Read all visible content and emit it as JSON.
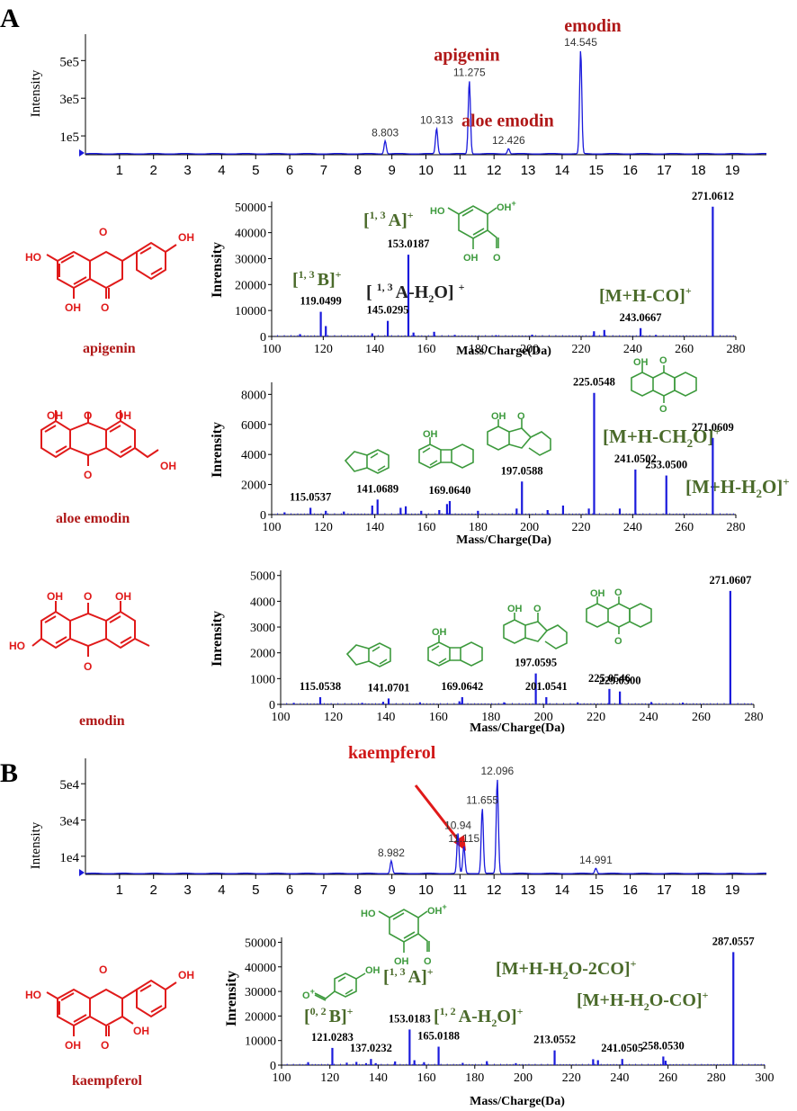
{
  "figure": {
    "panel_a_label": "A",
    "panel_b_label": "B",
    "colors": {
      "trace": "#1a1adc",
      "red": "#e01a1a",
      "green": "#3d9a3d",
      "darkred": "#b01818",
      "olive": "#4a6a2a"
    }
  },
  "chart_data": [
    {
      "id": "chromA",
      "type": "line",
      "title": "",
      "ylabel": "Intensity",
      "xlim": [
        0,
        20
      ],
      "ylim": [
        0,
        640000
      ],
      "x_ticks": [
        1,
        2,
        3,
        4,
        5,
        6,
        7,
        8,
        9,
        10,
        11,
        12,
        13,
        14,
        15,
        16,
        17,
        18,
        19
      ],
      "y_ticks": [
        {
          "value": 100000,
          "label": "1e5"
        },
        {
          "value": 300000,
          "label": "3e5"
        },
        {
          "value": 500000,
          "label": "5e5"
        }
      ],
      "peaks": [
        {
          "x": 8.803,
          "y": 70000,
          "label": "8.803"
        },
        {
          "x": 10.313,
          "y": 135000,
          "label": "10.313"
        },
        {
          "x": 11.275,
          "y": 390000,
          "label": "11.275"
        },
        {
          "x": 12.426,
          "y": 28000,
          "label": "12.426"
        },
        {
          "x": 14.545,
          "y": 550000,
          "label": "14.545"
        }
      ],
      "compounds": [
        {
          "name": "apigenin",
          "x": 11.2,
          "y": 500000
        },
        {
          "name": "aloe emodin",
          "x": 12.4,
          "y": 150000
        },
        {
          "name": "emodin",
          "x": 14.9,
          "y": 655000
        }
      ]
    },
    {
      "id": "msApigenin",
      "type": "bar",
      "xlabel": "Mass/Charge(Da)",
      "ylabel": "Inrensity",
      "xlim": [
        100,
        280
      ],
      "ylim": [
        0,
        52000
      ],
      "x_ticks": [
        100,
        120,
        140,
        160,
        180,
        200,
        220,
        240,
        260,
        280
      ],
      "y_ticks": [
        0,
        10000,
        20000,
        30000,
        40000,
        50000
      ],
      "peaks": [
        {
          "x": 111,
          "y": 900
        },
        {
          "x": 119.0499,
          "y": 9500
        },
        {
          "x": 121,
          "y": 4000
        },
        {
          "x": 139,
          "y": 1200
        },
        {
          "x": 145.0295,
          "y": 6000
        },
        {
          "x": 153.0187,
          "y": 31500
        },
        {
          "x": 155,
          "y": 1500
        },
        {
          "x": 163,
          "y": 1800
        },
        {
          "x": 171,
          "y": 600
        },
        {
          "x": 187,
          "y": 500
        },
        {
          "x": 201,
          "y": 700
        },
        {
          "x": 225,
          "y": 2000
        },
        {
          "x": 229,
          "y": 2500
        },
        {
          "x": 243.0667,
          "y": 3200
        },
        {
          "x": 249,
          "y": 600
        },
        {
          "x": 271.0612,
          "y": 50000
        }
      ],
      "peak_labels": [
        {
          "x": 119.0499,
          "y": 9500,
          "text": "119.0499"
        },
        {
          "x": 145.0295,
          "y": 6000,
          "text": "145.0295"
        },
        {
          "x": 153.0187,
          "y": 31500,
          "text": "153.0187"
        },
        {
          "x": 243.0667,
          "y": 3200,
          "text": "243.0667"
        },
        {
          "x": 271.0612,
          "y": 50000,
          "text": "271.0612"
        }
      ],
      "annotations": {
        "b13": "[1, 3 B]+",
        "a13h2o": "[ 1, 3 A-H2O] +",
        "a13": "[1, 3 A]+",
        "mhco": "[M+H-CO]+"
      }
    },
    {
      "id": "msAloe",
      "type": "bar",
      "xlabel": "Mass/Charge(Da)",
      "ylabel": "Inrensity",
      "xlim": [
        100,
        280
      ],
      "ylim": [
        0,
        8800
      ],
      "x_ticks": [
        100,
        120,
        140,
        160,
        180,
        200,
        220,
        240,
        260,
        280
      ],
      "y_ticks": [
        0,
        2000,
        4000,
        6000,
        8000
      ],
      "peaks": [
        {
          "x": 105,
          "y": 150
        },
        {
          "x": 115.0537,
          "y": 450
        },
        {
          "x": 121,
          "y": 250
        },
        {
          "x": 128,
          "y": 200
        },
        {
          "x": 139,
          "y": 600
        },
        {
          "x": 141.0689,
          "y": 1000
        },
        {
          "x": 150,
          "y": 450
        },
        {
          "x": 152,
          "y": 550
        },
        {
          "x": 158,
          "y": 250
        },
        {
          "x": 165,
          "y": 300
        },
        {
          "x": 168,
          "y": 700
        },
        {
          "x": 169.064,
          "y": 900
        },
        {
          "x": 180,
          "y": 250
        },
        {
          "x": 195,
          "y": 400
        },
        {
          "x": 197.0588,
          "y": 2200
        },
        {
          "x": 207,
          "y": 300
        },
        {
          "x": 213,
          "y": 600
        },
        {
          "x": 223,
          "y": 400
        },
        {
          "x": 225.0548,
          "y": 8100
        },
        {
          "x": 235,
          "y": 400
        },
        {
          "x": 241.0502,
          "y": 3000
        },
        {
          "x": 253.05,
          "y": 2600
        },
        {
          "x": 271.0609,
          "y": 5100
        }
      ],
      "peak_labels": [
        {
          "x": 115.0537,
          "y": 450,
          "text": "115.0537"
        },
        {
          "x": 141.0689,
          "y": 1000,
          "text": "141.0689"
        },
        {
          "x": 169.064,
          "y": 900,
          "text": "169.0640"
        },
        {
          "x": 197.0588,
          "y": 2200,
          "text": "197.0588"
        },
        {
          "x": 225.0548,
          "y": 8100,
          "text": "225.0548"
        },
        {
          "x": 241.0502,
          "y": 3000,
          "text": "241.0502"
        },
        {
          "x": 253.05,
          "y": 2600,
          "text": "253.0500"
        },
        {
          "x": 271.0609,
          "y": 5100,
          "text": "271.0609"
        }
      ],
      "annotations": {
        "mhch2o": "[M+H-CH2O]+",
        "mhh2o": "[M+H-H2O]+"
      }
    },
    {
      "id": "msEmodin",
      "type": "bar",
      "xlabel": "Mass/Charge(Da)",
      "ylabel": "Inrensity",
      "xlim": [
        100,
        280
      ],
      "ylim": [
        0,
        5200
      ],
      "x_ticks": [
        100,
        120,
        140,
        160,
        180,
        200,
        220,
        240,
        260,
        280
      ],
      "y_ticks": [
        0,
        1000,
        2000,
        3000,
        4000,
        5000
      ],
      "peaks": [
        {
          "x": 105,
          "y": 60
        },
        {
          "x": 115.0538,
          "y": 280
        },
        {
          "x": 131,
          "y": 60
        },
        {
          "x": 139,
          "y": 100
        },
        {
          "x": 141.0701,
          "y": 230
        },
        {
          "x": 153,
          "y": 80
        },
        {
          "x": 168,
          "y": 120
        },
        {
          "x": 169.0642,
          "y": 280
        },
        {
          "x": 185,
          "y": 80
        },
        {
          "x": 197.0595,
          "y": 1200
        },
        {
          "x": 201.0541,
          "y": 280
        },
        {
          "x": 213,
          "y": 80
        },
        {
          "x": 225.0546,
          "y": 600
        },
        {
          "x": 229.05,
          "y": 500
        },
        {
          "x": 241,
          "y": 90
        },
        {
          "x": 253,
          "y": 70
        },
        {
          "x": 271.0607,
          "y": 4400
        }
      ],
      "peak_labels": [
        {
          "x": 115.0538,
          "y": 280,
          "text": "115.0538"
        },
        {
          "x": 141.0701,
          "y": 230,
          "text": "141.0701"
        },
        {
          "x": 169.0642,
          "y": 280,
          "text": "169.0642"
        },
        {
          "x": 197.0595,
          "y": 1200,
          "text": "197.0595"
        },
        {
          "x": 201.0541,
          "y": 280,
          "text": "201.0541"
        },
        {
          "x": 225.0546,
          "y": 600,
          "text": "225.0546"
        },
        {
          "x": 229.05,
          "y": 500,
          "text": "229.0500"
        },
        {
          "x": 271.0607,
          "y": 4400,
          "text": "271.0607"
        }
      ]
    },
    {
      "id": "chromB",
      "type": "line",
      "ylabel": "Intensity",
      "xlim": [
        0,
        20
      ],
      "ylim": [
        0,
        64000
      ],
      "x_ticks": [
        1,
        2,
        3,
        4,
        5,
        6,
        7,
        8,
        9,
        10,
        11,
        12,
        13,
        14,
        15,
        16,
        17,
        18,
        19
      ],
      "y_ticks": [
        {
          "value": 10000,
          "label": "1e4"
        },
        {
          "value": 30000,
          "label": "3e4"
        },
        {
          "value": 50000,
          "label": "5e4"
        }
      ],
      "peaks": [
        {
          "x": 8.982,
          "y": 7000,
          "label": "8.982"
        },
        {
          "x": 11.115,
          "y": 15000,
          "label": "11.115"
        },
        {
          "x": 10.94,
          "y": 22000,
          "label": "10.94"
        },
        {
          "x": 11.655,
          "y": 36000,
          "label": "11.655"
        },
        {
          "x": 12.096,
          "y": 52000,
          "label": "12.096"
        },
        {
          "x": 14.991,
          "y": 3000,
          "label": "14.991"
        }
      ],
      "compounds": [
        {
          "name": "kaempferol",
          "x": 9.0,
          "y": 64000
        }
      ]
    },
    {
      "id": "msKaempferol",
      "type": "bar",
      "xlabel": "Mass/Charge(Da)",
      "ylabel": "Inrensity",
      "xlim": [
        100,
        300
      ],
      "ylim": [
        0,
        52000
      ],
      "x_ticks": [
        100,
        120,
        140,
        160,
        180,
        200,
        220,
        240,
        260,
        280,
        300
      ],
      "y_ticks": [
        0,
        10000,
        20000,
        30000,
        40000,
        50000
      ],
      "peaks": [
        {
          "x": 111,
          "y": 1200
        },
        {
          "x": 121.0283,
          "y": 7000
        },
        {
          "x": 127,
          "y": 1000
        },
        {
          "x": 131,
          "y": 1300
        },
        {
          "x": 135,
          "y": 800
        },
        {
          "x": 137.0232,
          "y": 2500
        },
        {
          "x": 139,
          "y": 800
        },
        {
          "x": 147,
          "y": 1500
        },
        {
          "x": 153.0183,
          "y": 14500
        },
        {
          "x": 155,
          "y": 2000
        },
        {
          "x": 159,
          "y": 1200
        },
        {
          "x": 165.0188,
          "y": 7500
        },
        {
          "x": 175,
          "y": 900
        },
        {
          "x": 185,
          "y": 1600
        },
        {
          "x": 197,
          "y": 800
        },
        {
          "x": 213.0552,
          "y": 6000
        },
        {
          "x": 229,
          "y": 2400
        },
        {
          "x": 231,
          "y": 2000
        },
        {
          "x": 241.0505,
          "y": 2500
        },
        {
          "x": 258.053,
          "y": 3500
        },
        {
          "x": 259,
          "y": 1800
        },
        {
          "x": 287.0557,
          "y": 46000
        }
      ],
      "peak_labels": [
        {
          "x": 121.0283,
          "y": 7000,
          "text": "121.0283"
        },
        {
          "x": 137.0232,
          "y": 2500,
          "text": "137.0232"
        },
        {
          "x": 153.0183,
          "y": 14500,
          "text": "153.0183"
        },
        {
          "x": 165.0188,
          "y": 7500,
          "text": "165.0188"
        },
        {
          "x": 213.0552,
          "y": 6000,
          "text": "213.0552"
        },
        {
          "x": 241.0505,
          "y": 2500,
          "text": "241.0505"
        },
        {
          "x": 258.053,
          "y": 3500,
          "text": "258.0530"
        },
        {
          "x": 287.0557,
          "y": 46000,
          "text": "287.0557"
        }
      ],
      "annotations": {
        "b02": "[0, 2 B]+",
        "a13": "[1, 3 A]+",
        "a12h2o": "[1, 2 A-H2O]+",
        "mhh2o2co": "[M+H-H2O-2CO]+",
        "mhh2oco": "[M+H-H2O-CO]+"
      }
    }
  ],
  "structures": {
    "apigenin": "apigenin",
    "aloe_emodin": "aloe emodin",
    "emodin": "emodin",
    "kaempferol": "kaempferol",
    "atoms": {
      "oh": "OH",
      "ho": "HO",
      "o": "O",
      "oplus": "O+"
    }
  }
}
